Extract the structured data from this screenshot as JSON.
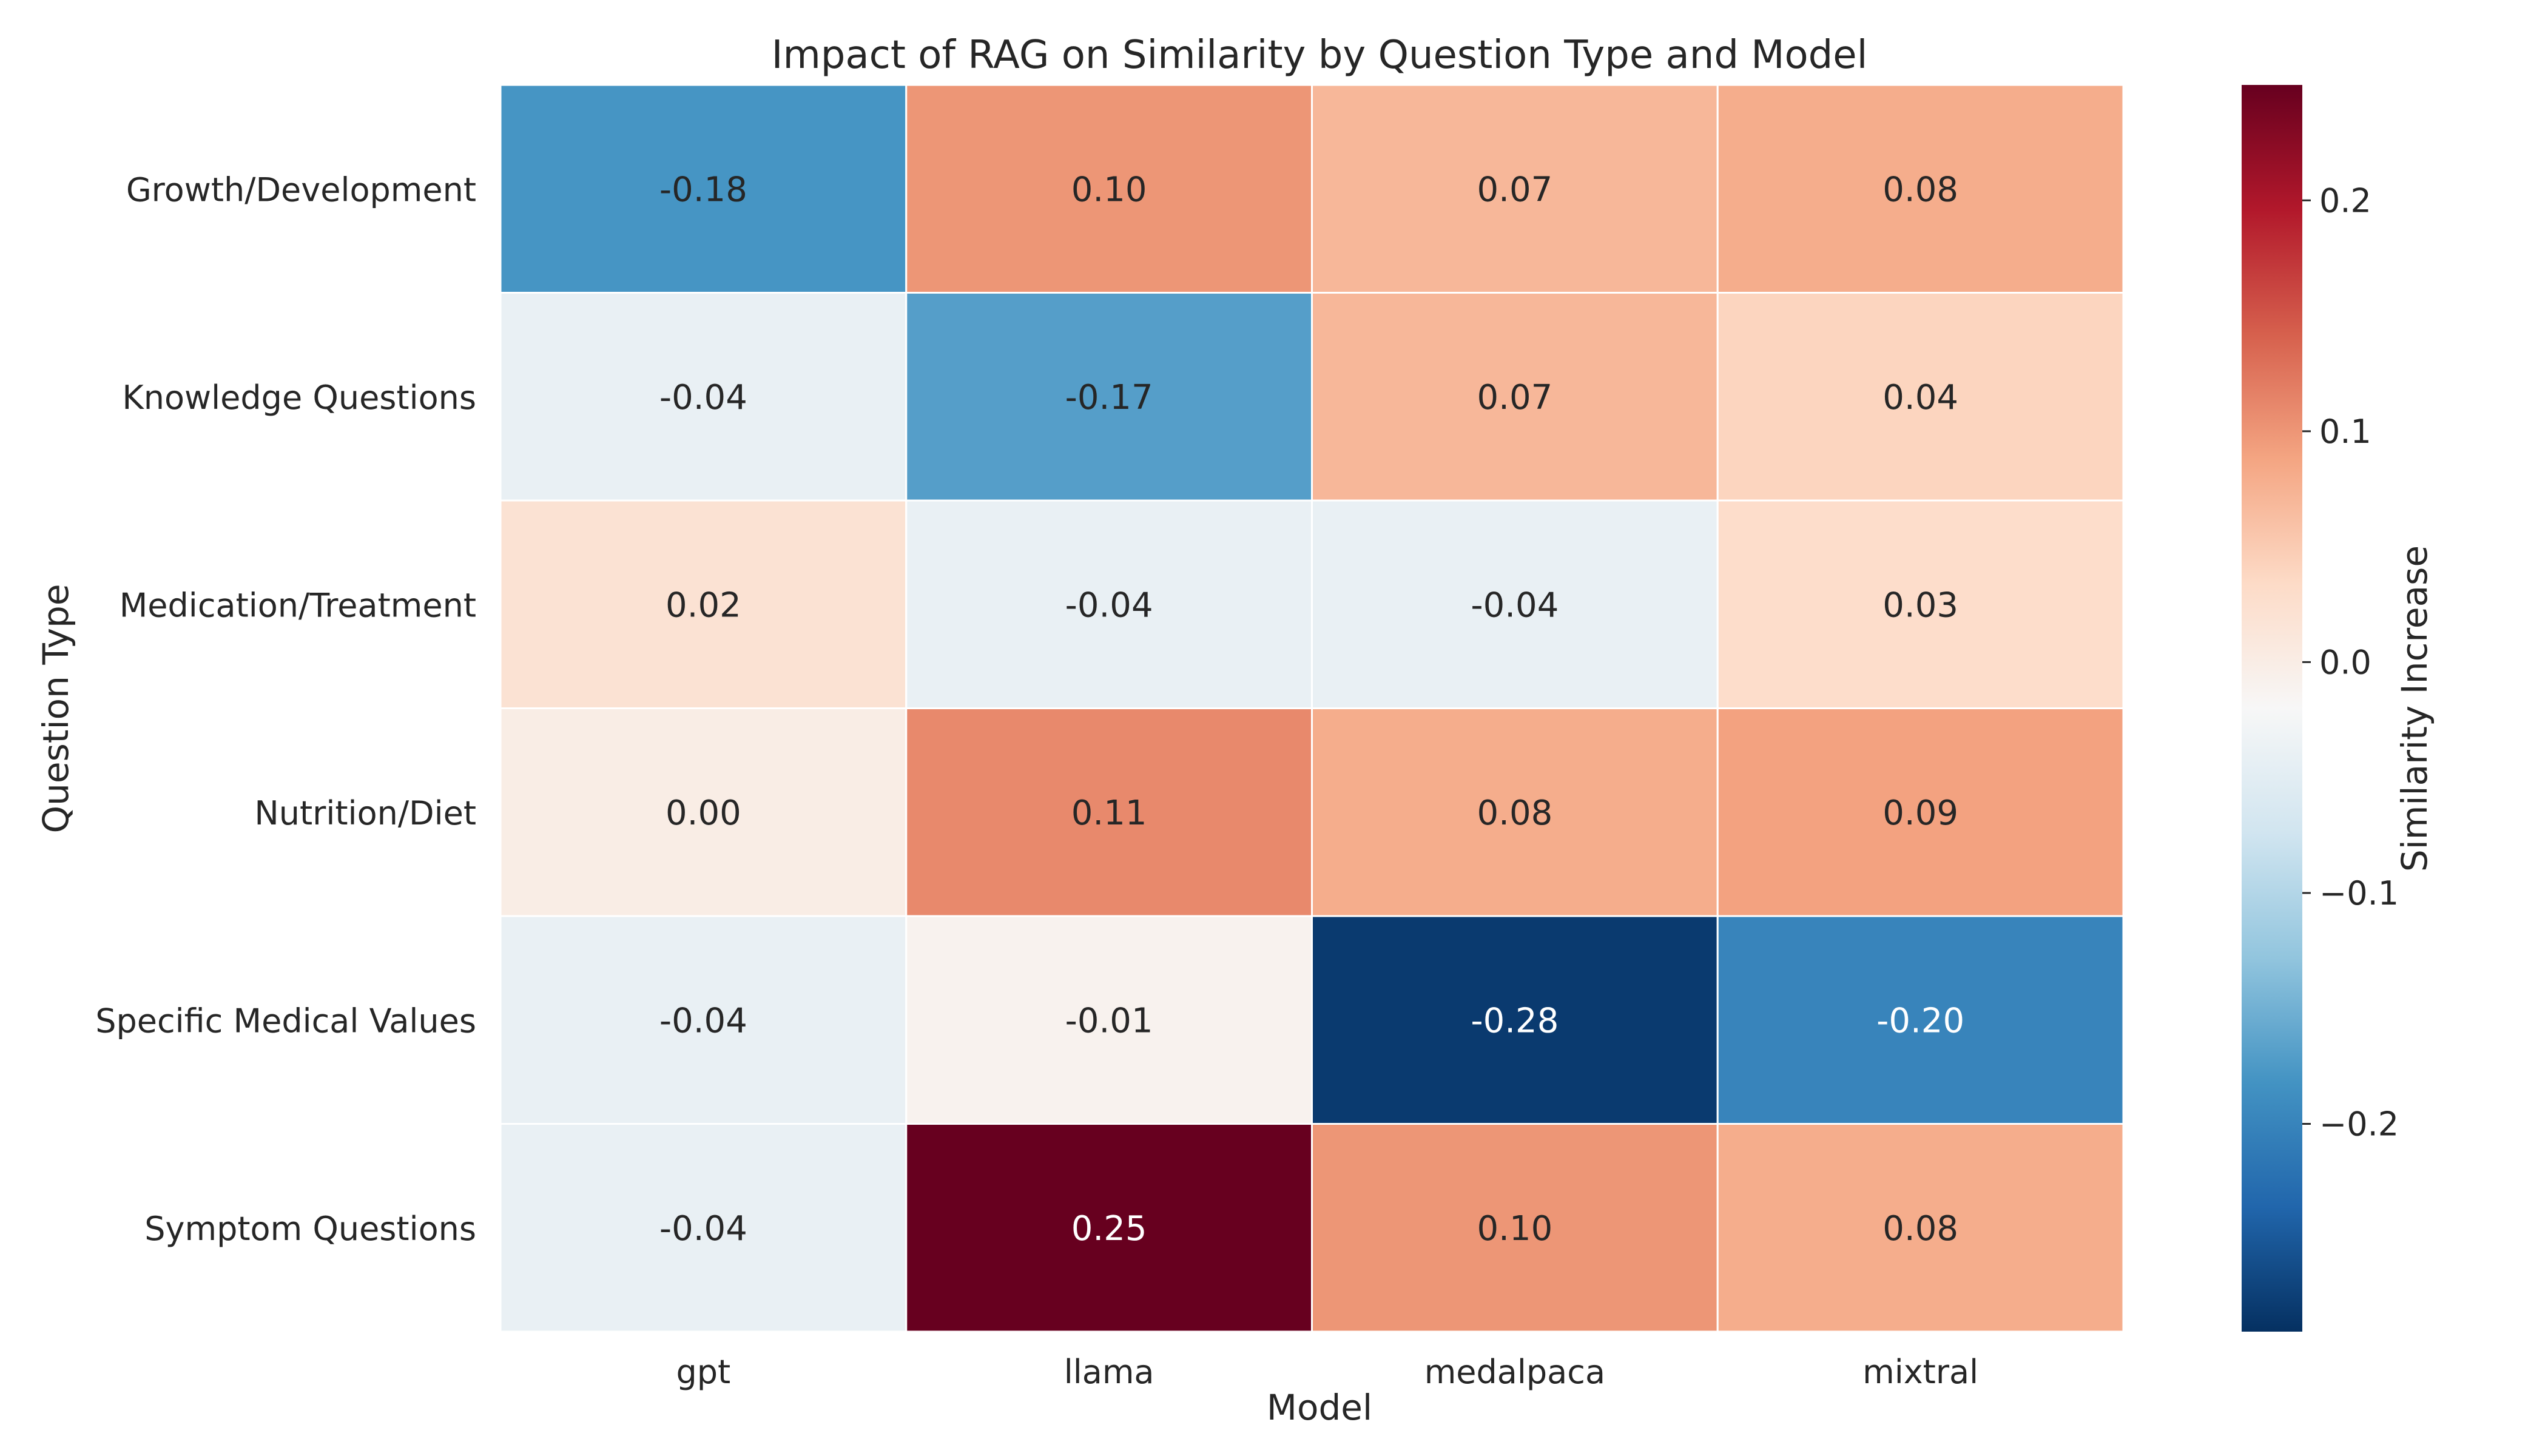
{
  "chart_data": {
    "type": "heatmap",
    "title": "Impact of RAG on Similarity by Question Type and Model",
    "xlabel": "Model",
    "ylabel": "Question Type",
    "x_categories": [
      "gpt",
      "llama",
      "medalpaca",
      "mixtral"
    ],
    "y_categories": [
      "Growth/Development",
      "Knowledge Questions",
      "Medication/Treatment",
      "Nutrition/Diet",
      "Specific Medical Values",
      "Symptom Questions"
    ],
    "values": [
      [
        -0.18,
        0.1,
        0.07,
        0.08
      ],
      [
        -0.04,
        -0.17,
        0.07,
        0.04
      ],
      [
        0.02,
        -0.04,
        -0.04,
        0.03
      ],
      [
        0.0,
        0.11,
        0.08,
        0.09
      ],
      [
        -0.04,
        -0.01,
        -0.28,
        -0.2
      ],
      [
        -0.04,
        0.25,
        0.1,
        0.08
      ]
    ],
    "cell_labels": [
      [
        "-0.18",
        "0.10",
        "0.07",
        "0.08"
      ],
      [
        "-0.04",
        "-0.17",
        "0.07",
        "0.04"
      ],
      [
        "0.02",
        "-0.04",
        "-0.04",
        "0.03"
      ],
      [
        "0.00",
        "0.11",
        "0.08",
        "0.09"
      ],
      [
        "-0.04",
        "-0.01",
        "-0.28",
        "-0.20"
      ],
      [
        "-0.04",
        "0.25",
        "0.10",
        "0.08"
      ]
    ],
    "colorbar": {
      "label": "Similarity Increase",
      "range": [
        -0.29,
        0.25
      ],
      "colormap": "RdBu_r",
      "ticks": [
        0.2,
        0.1,
        0.0,
        -0.1,
        -0.2
      ],
      "tick_labels": [
        "0.2",
        "0.1",
        "0.0",
        "−0.1",
        "−0.2"
      ]
    },
    "cell_gridlines": true
  }
}
